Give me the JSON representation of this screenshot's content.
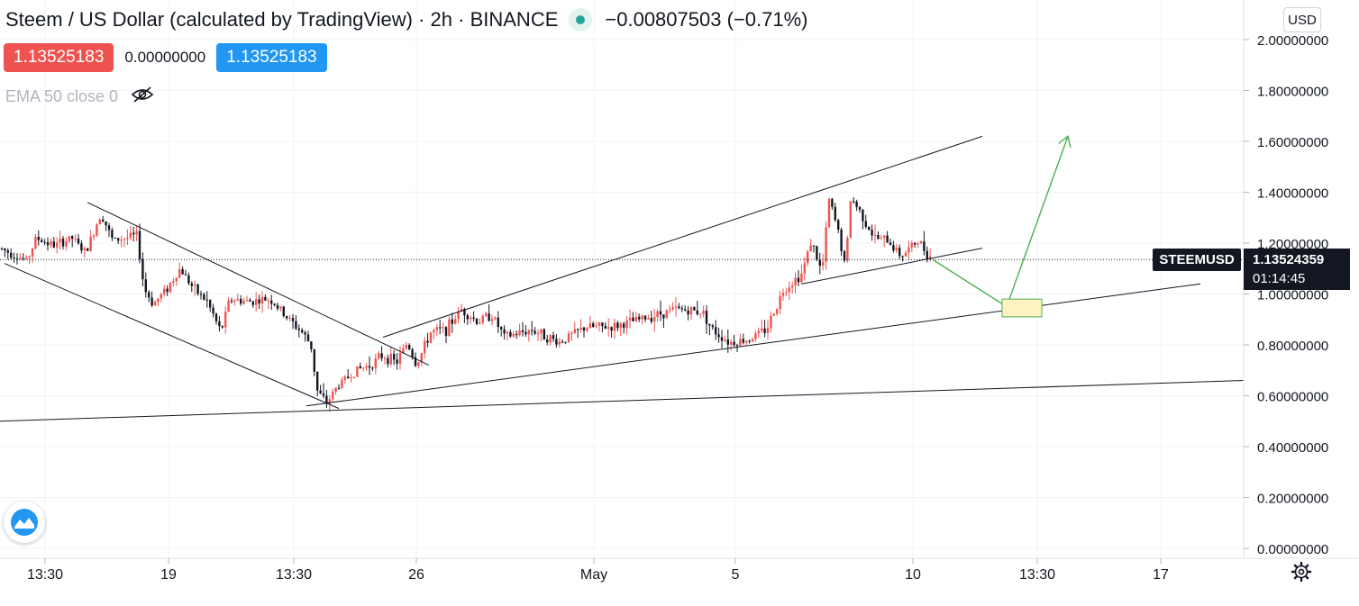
{
  "header": {
    "title": "Steem / US Dollar (calculated by TradingView) · 2h · BINANCE",
    "change": "−0.00807503 (−0.71%)",
    "sell_price": "1.13525183",
    "spread": "0.00000000",
    "buy_price": "1.13525183",
    "indicator": "EMA 50 close 0",
    "currency_button": "USD"
  },
  "price_tags": {
    "symbol": "STEEMUSD",
    "last_price": "1.13524359",
    "countdown": "01:14:45"
  },
  "colors": {
    "up": "#ef5350",
    "down": "#131722",
    "arrow": "#4caf50",
    "target_box_fill": "#fff3c4",
    "target_box_stroke": "#4caf50"
  },
  "icons": {
    "indicator_visibility": "eye-off-icon",
    "logo": "tradingview-logo-icon",
    "settings": "gear-icon"
  },
  "chart_data": {
    "type": "candlestick",
    "symbol": "STEEMUSD",
    "interval": "2h",
    "exchange": "BINANCE",
    "x_tick_labels": [
      "13:30",
      "19",
      "13:30",
      "26",
      "May",
      "5",
      "10",
      "13:30",
      "17"
    ],
    "y_tick_labels": [
      "0.00000000",
      "0.20000000",
      "0.40000000",
      "0.60000000",
      "0.80000000",
      "1.00000000",
      "1.20000000",
      "1.40000000",
      "1.60000000",
      "1.80000000",
      "2.00000000"
    ],
    "ylim": [
      -0.02,
      2.05
    ],
    "last_price": 1.13524359,
    "price_path": [
      [
        0,
        1.18
      ],
      [
        30,
        1.13
      ],
      [
        40,
        1.22
      ],
      [
        60,
        1.19
      ],
      [
        80,
        1.22
      ],
      [
        95,
        1.16
      ],
      [
        112,
        1.32
      ],
      [
        125,
        1.21
      ],
      [
        152,
        1.23
      ],
      [
        160,
        1.02
      ],
      [
        170,
        0.96
      ],
      [
        185,
        1.02
      ],
      [
        200,
        1.1
      ],
      [
        215,
        1.02
      ],
      [
        230,
        0.97
      ],
      [
        245,
        0.85
      ],
      [
        255,
        0.98
      ],
      [
        275,
        0.97
      ],
      [
        300,
        0.98
      ],
      [
        315,
        0.92
      ],
      [
        335,
        0.85
      ],
      [
        345,
        0.8
      ],
      [
        352,
        0.62
      ],
      [
        362,
        0.57
      ],
      [
        375,
        0.64
      ],
      [
        395,
        0.7
      ],
      [
        410,
        0.72
      ],
      [
        425,
        0.76
      ],
      [
        440,
        0.73
      ],
      [
        452,
        0.81
      ],
      [
        462,
        0.72
      ],
      [
        478,
        0.85
      ],
      [
        495,
        0.86
      ],
      [
        512,
        0.94
      ],
      [
        530,
        0.89
      ],
      [
        545,
        0.92
      ],
      [
        560,
        0.83
      ],
      [
        590,
        0.86
      ],
      [
        620,
        0.81
      ],
      [
        650,
        0.87
      ],
      [
        680,
        0.87
      ],
      [
        720,
        0.91
      ],
      [
        750,
        0.94
      ],
      [
        780,
        0.93
      ],
      [
        790,
        0.86
      ],
      [
        810,
        0.81
      ],
      [
        830,
        0.82
      ],
      [
        850,
        0.86
      ],
      [
        870,
        1.02
      ],
      [
        890,
        1.08
      ],
      [
        900,
        1.21
      ],
      [
        912,
        1.08
      ],
      [
        920,
        1.37
      ],
      [
        930,
        1.25
      ],
      [
        938,
        1.1
      ],
      [
        944,
        1.38
      ],
      [
        955,
        1.32
      ],
      [
        970,
        1.22
      ],
      [
        985,
        1.21
      ],
      [
        1000,
        1.15
      ],
      [
        1010,
        1.18
      ],
      [
        1018,
        1.21
      ],
      [
        1035,
        1.135
      ]
    ],
    "drawings": [
      {
        "kind": "trendline",
        "from": [
          97,
          1.36
        ],
        "to": [
          476,
          0.72
        ]
      },
      {
        "kind": "trendline",
        "from": [
          5,
          1.12
        ],
        "to": [
          376,
          0.55
        ]
      },
      {
        "kind": "trendline",
        "from": [
          425,
          0.83
        ],
        "to": [
          1090,
          1.62
        ]
      },
      {
        "kind": "trendline",
        "from": [
          340,
          0.56
        ],
        "to": [
          1332,
          1.04
        ]
      },
      {
        "kind": "trendline",
        "from": [
          890,
          1.04
        ],
        "to": [
          1090,
          1.18
        ]
      },
      {
        "kind": "trendline",
        "from": [
          0,
          0.5
        ],
        "to": [
          1380,
          0.66
        ]
      },
      {
        "kind": "arrow",
        "points": [
          [
            1035,
            1.135
          ],
          [
            1117,
            0.95
          ],
          [
            1185,
            1.62
          ]
        ]
      },
      {
        "kind": "target_box",
        "from": [
          1112,
          0.98
        ],
        "to": [
          1156,
          0.91
        ]
      }
    ]
  }
}
